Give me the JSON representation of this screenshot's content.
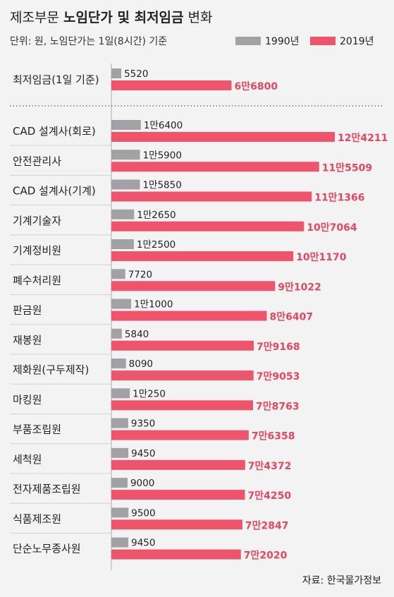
{
  "title": {
    "prefix": "제조부문 ",
    "bold": "노임단가 및 최저임금",
    "suffix": " 변화"
  },
  "unit_note": "단위: 원, 노임단가는 1일(8시간) 기준",
  "source": "자료: 한국물가정보",
  "colors": {
    "s1990": "#a2a2a5",
    "s2019": "#ef546d",
    "label2019": "#e8465f",
    "background": "#f3f3f3"
  },
  "chart_data": {
    "type": "bar",
    "orientation": "horizontal",
    "series": [
      {
        "name": "1990년",
        "values": [
          5520,
          16400,
          15900,
          15850,
          12650,
          12500,
          7720,
          11000,
          5840,
          8090,
          10250,
          9350,
          9450,
          9000,
          9500,
          9450
        ]
      },
      {
        "name": "2019년",
        "values": [
          66800,
          124211,
          115509,
          111366,
          107064,
          101170,
          91022,
          86407,
          79168,
          79053,
          78763,
          76358,
          74372,
          74250,
          72847,
          72020
        ]
      }
    ],
    "categories": [
      "최저임금(1일 기준)",
      "CAD 설계사(회로)",
      "안전관리사",
      "CAD 설계사(기계)",
      "기계기술자",
      "기계정비원",
      "폐수처리원",
      "판금원",
      "재봉원",
      "제화원(구두제작)",
      "마킹원",
      "부품조립원",
      "세척원",
      "전자제품조립원",
      "식품제조원",
      "단순노무종사원"
    ],
    "data_labels": {
      "1990년": [
        "5520",
        "1만6400",
        "1만5900",
        "1만5850",
        "1만2650",
        "1만2500",
        "7720",
        "1만1000",
        "5840",
        "8090",
        "1만250",
        "9350",
        "9450",
        "9000",
        "9500",
        "9450"
      ],
      "2019년": [
        "6만6800",
        "12만4211",
        "11만5509",
        "11만1366",
        "10만7064",
        "10만1170",
        "9만1022",
        "8만6407",
        "7만9168",
        "7만9053",
        "7만8763",
        "7만6358",
        "7만4372",
        "7만4250",
        "7만2847",
        "7만2020"
      ]
    },
    "legend": "top-right",
    "grid": false
  }
}
